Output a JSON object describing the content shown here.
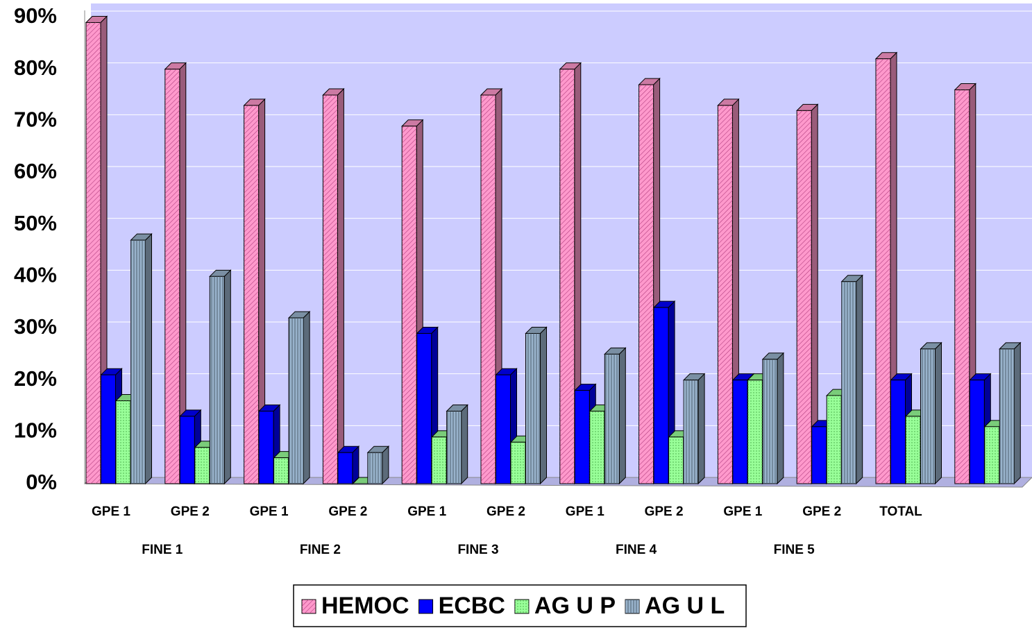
{
  "chart_data": {
    "type": "bar3d",
    "categories": [
      "GPE 1",
      "GPE 2",
      "GPE 1",
      "GPE 2",
      "GPE 1",
      "GPE 2",
      "GPE 1",
      "GPE 2",
      "GPE 1",
      "GPE 2",
      "TOTAL",
      null
    ],
    "category_groups": [
      "FINE 1",
      "FINE 2",
      "FINE 3",
      "FINE 4",
      "FINE 5"
    ],
    "series": [
      {
        "name": "HEMOC",
        "color": "#ff99cc",
        "hatch": "diagonal",
        "values": [
          89,
          80,
          73,
          75,
          69,
          75,
          80,
          77,
          73,
          72,
          82,
          76
        ]
      },
      {
        "name": "ECBC",
        "color": "#0000ff",
        "hatch": "none",
        "values": [
          21,
          13,
          14,
          6,
          29,
          21,
          18,
          34,
          20,
          11,
          20,
          20
        ]
      },
      {
        "name": "AG U P",
        "color": "#99ff99",
        "hatch": "dots",
        "values": [
          16,
          7,
          5,
          0,
          9,
          8,
          14,
          9,
          20,
          17,
          13,
          11
        ]
      },
      {
        "name": "AG U L",
        "color": "#99b3cc",
        "hatch": "vertical",
        "values": [
          47,
          40,
          32,
          6,
          14,
          29,
          25,
          20,
          24,
          39,
          26,
          26
        ]
      }
    ],
    "ylim": [
      0,
      90
    ],
    "yticks": [
      {
        "value": 0,
        "label": "0%"
      },
      {
        "value": 10,
        "label": "10%"
      },
      {
        "value": 20,
        "label": "20%"
      },
      {
        "value": 30,
        "label": "30%"
      },
      {
        "value": 40,
        "label": "40%"
      },
      {
        "value": 50,
        "label": "50%"
      },
      {
        "value": 60,
        "label": "60%"
      },
      {
        "value": 70,
        "label": "70%"
      },
      {
        "value": 80,
        "label": "80%"
      },
      {
        "value": 90,
        "label": "90%"
      }
    ],
    "grid": true,
    "background": "#ccccff",
    "legend": "bottom"
  }
}
